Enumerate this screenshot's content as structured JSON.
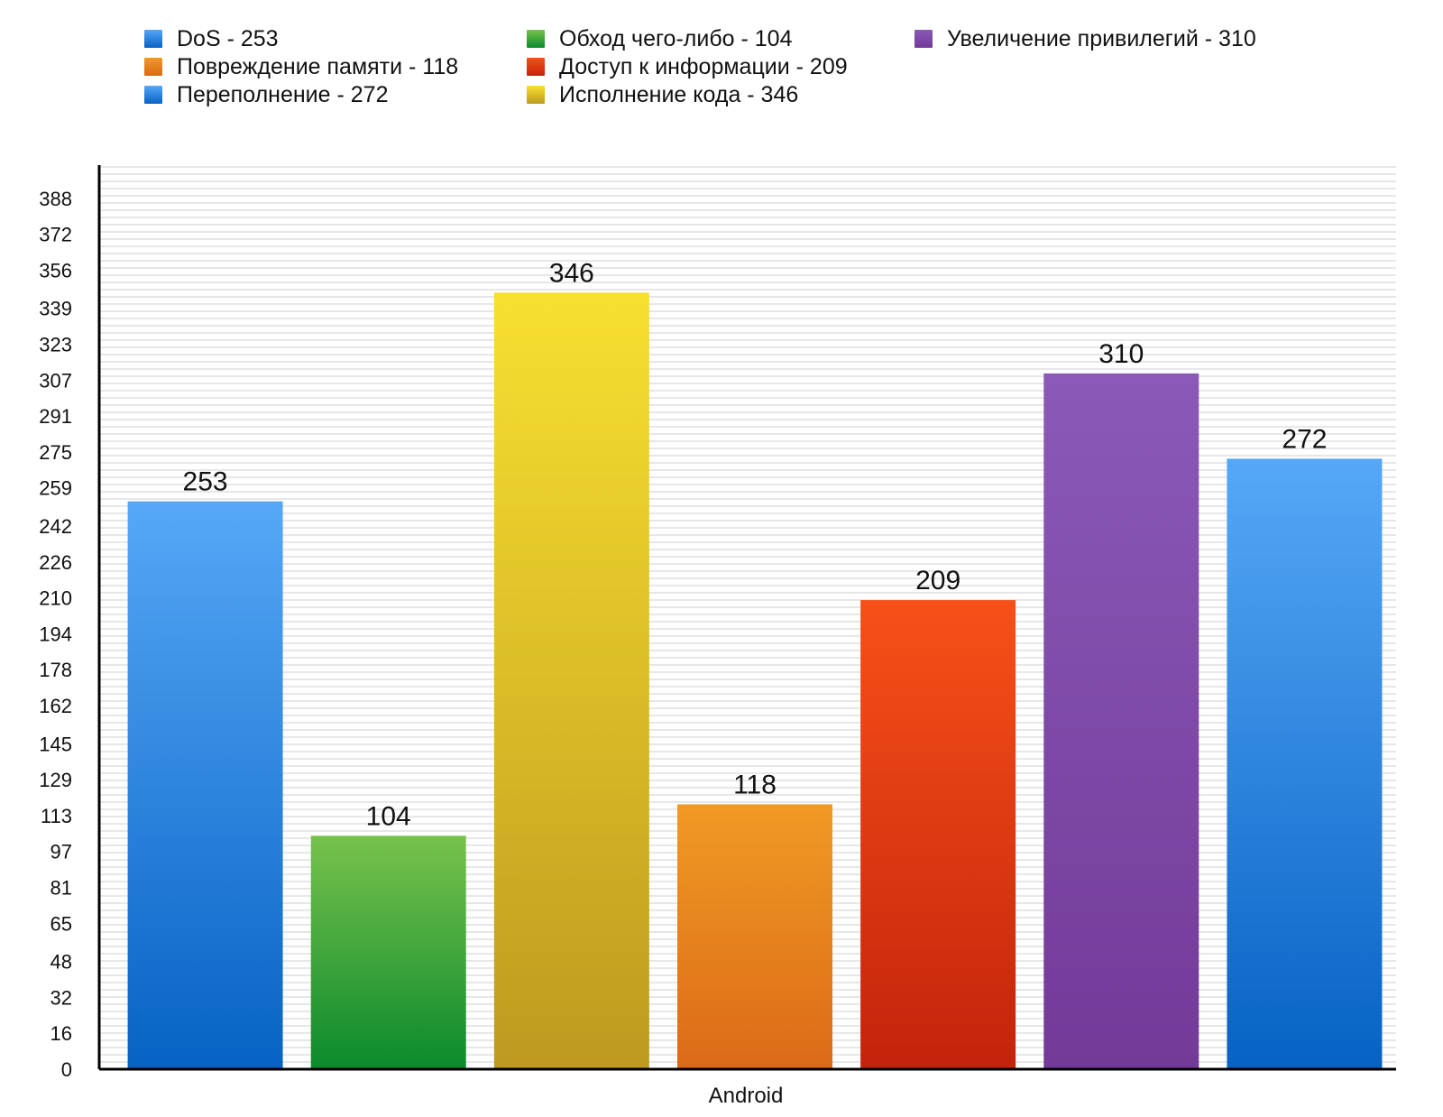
{
  "chart_data": {
    "type": "bar",
    "title": "",
    "xlabel": "Android",
    "ylabel": "",
    "ylim": [
      0,
      402
    ],
    "yticks": [
      0,
      16,
      32,
      48,
      65,
      81,
      97,
      113,
      129,
      145,
      162,
      178,
      194,
      210,
      226,
      242,
      259,
      275,
      291,
      307,
      323,
      339,
      356,
      372,
      388
    ],
    "grid": true,
    "legend_position": "top",
    "series": [
      {
        "name": "DoS",
        "value": 253,
        "legend": "DoS - 253",
        "color_top": "#56a8f7",
        "color_bottom": "#0762c4"
      },
      {
        "name": "Обход чего-либо",
        "value": 104,
        "legend": "Обход чего-либо - 104",
        "color_top": "#78c24c",
        "color_bottom": "#0a8a2c"
      },
      {
        "name": "Исполнение кода",
        "value": 346,
        "legend": "Исполнение кода - 346",
        "color_top": "#f8e030",
        "color_bottom": "#bd9a1f"
      },
      {
        "name": "Повреждение памяти",
        "value": 118,
        "legend": "Повреждение памяти - 118",
        "color_top": "#f09a24",
        "color_bottom": "#dc6a18"
      },
      {
        "name": "Доступ к информации",
        "value": 209,
        "legend": "Доступ к информации - 209",
        "color_top": "#f75018",
        "color_bottom": "#c4230c"
      },
      {
        "name": "Увеличение привилегий",
        "value": 310,
        "legend": "Увеличение привилегий - 310",
        "color_top": "#8a5ab6",
        "color_bottom": "#733a98"
      },
      {
        "name": "Переполнение",
        "value": 272,
        "legend": "Переполнение - 272",
        "color_top": "#56a8f7",
        "color_bottom": "#0762c4"
      }
    ],
    "legend_order": [
      0,
      3,
      6,
      1,
      4,
      2,
      5
    ]
  }
}
